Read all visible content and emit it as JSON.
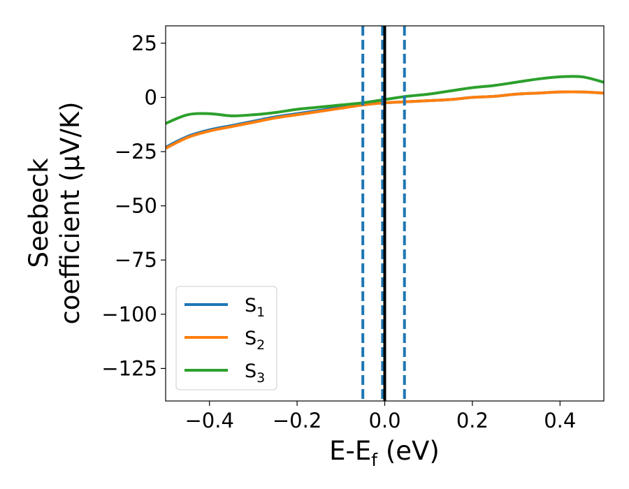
{
  "chart_data": {
    "type": "line",
    "xlabel": {
      "main": "E-E",
      "sub": "f",
      "unit": " (eV)"
    },
    "ylabel": {
      "line1": "Seebeck",
      "line2": "coefficient  (μV/K)"
    },
    "xlim": [
      -0.5,
      0.5
    ],
    "ylim": [
      -140,
      33
    ],
    "xticks": [
      -0.4,
      -0.2,
      0.0,
      0.2,
      0.4
    ],
    "xtick_labels": [
      "−0.4",
      "−0.2",
      "0.0",
      "0.2",
      "0.4"
    ],
    "yticks": [
      25,
      0,
      -25,
      -50,
      -75,
      -100,
      -125
    ],
    "ytick_labels": [
      "25",
      "0",
      "−25",
      "−50",
      "−75",
      "−100",
      "−125"
    ],
    "grid": false,
    "legend_position": "lower-left",
    "series": [
      {
        "name": "S",
        "sub": "1",
        "color": "#1f77b4",
        "x": [
          -0.5,
          -0.45,
          -0.4,
          -0.35,
          -0.3,
          -0.25,
          -0.2,
          -0.15,
          -0.1,
          -0.05,
          0.0,
          0.05,
          0.1,
          0.15,
          0.2,
          0.25,
          0.3,
          0.35,
          0.4,
          0.45,
          0.5
        ],
        "y": [
          -23,
          -18,
          -15,
          -13,
          -11,
          -9,
          -7.5,
          -6,
          -4.5,
          -3.3,
          -2.5,
          -2,
          -1.5,
          -1,
          0,
          0.5,
          1.5,
          2,
          2.5,
          2.5,
          2
        ]
      },
      {
        "name": "S",
        "sub": "2",
        "color": "#ff7f0e",
        "x": [
          -0.5,
          -0.45,
          -0.4,
          -0.35,
          -0.3,
          -0.25,
          -0.2,
          -0.15,
          -0.1,
          -0.05,
          0.0,
          0.05,
          0.1,
          0.15,
          0.2,
          0.25,
          0.3,
          0.35,
          0.4,
          0.45,
          0.5
        ],
        "y": [
          -23.5,
          -18.5,
          -15.5,
          -13.5,
          -11.5,
          -9.5,
          -8,
          -6.5,
          -5,
          -3.5,
          -2.5,
          -2,
          -1.5,
          -1,
          0,
          0.5,
          1.5,
          2,
          2.5,
          2.5,
          2
        ]
      },
      {
        "name": "S",
        "sub": "3",
        "color": "#2ca02c",
        "x": [
          -0.5,
          -0.45,
          -0.4,
          -0.35,
          -0.3,
          -0.25,
          -0.2,
          -0.15,
          -0.1,
          -0.05,
          0.0,
          0.05,
          0.1,
          0.15,
          0.2,
          0.25,
          0.3,
          0.35,
          0.4,
          0.45,
          0.5
        ],
        "y": [
          -12,
          -8,
          -7.5,
          -8.5,
          -8,
          -7,
          -5.5,
          -4.5,
          -3.5,
          -2.5,
          -1,
          0.5,
          1.5,
          3,
          4.5,
          5.5,
          7,
          8.5,
          9.5,
          9.5,
          7
        ]
      }
    ],
    "vertical_lines": [
      {
        "x": -0.05,
        "style": "dashed",
        "color": "#1f77b4"
      },
      {
        "x": -0.005,
        "style": "dashed",
        "color": "#1f77b4"
      },
      {
        "x": 0.0,
        "style": "solid",
        "color": "#000000"
      },
      {
        "x": 0.045,
        "style": "dashed",
        "color": "#1f77b4"
      }
    ]
  }
}
